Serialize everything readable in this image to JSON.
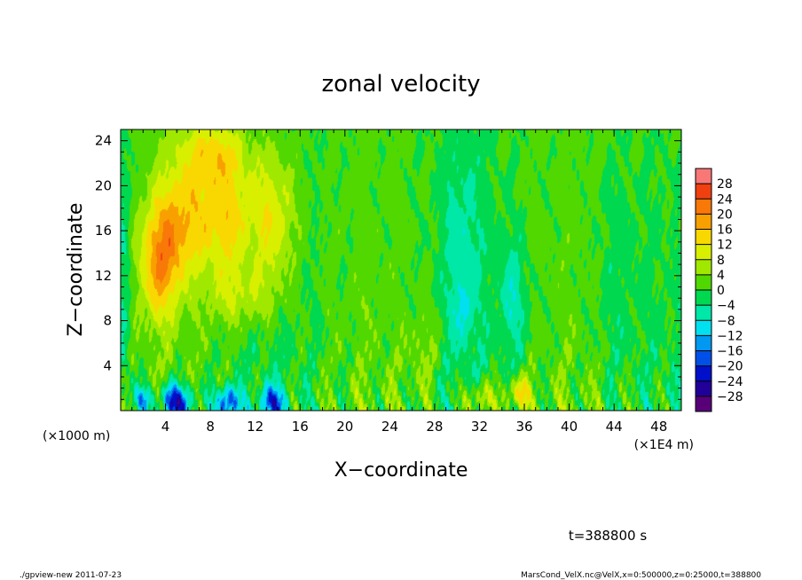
{
  "chart_data": {
    "type": "heatmap",
    "title": "zonal velocity",
    "xlabel": "X−coordinate",
    "ylabel": "Z−coordinate",
    "x_unit_left": "(×1000 m)",
    "x_unit_right": "(×1E4 m)",
    "x_ticks": [
      "4",
      "8",
      "12",
      "16",
      "20",
      "24",
      "28",
      "32",
      "36",
      "40",
      "44",
      "48"
    ],
    "y_ticks": [
      "4",
      "8",
      "12",
      "16",
      "20",
      "24"
    ],
    "xlim": [
      0,
      50
    ],
    "ylim": [
      0,
      25
    ],
    "colorbar_levels": [
      28,
      24,
      20,
      16,
      12,
      8,
      4,
      0,
      -4,
      -8,
      -12,
      -16,
      -20,
      -24,
      -28
    ],
    "colorbar_labels": [
      "28",
      "24",
      "20",
      "16",
      "12",
      "8",
      "4",
      "0",
      "−4",
      "−8",
      "−12",
      "−16",
      "−20",
      "−24",
      "−28"
    ],
    "colorbar_colors": [
      "#f87878",
      "#f04010",
      "#f87808",
      "#f8a000",
      "#f8d800",
      "#d8f000",
      "#a0e800",
      "#50d800",
      "#00d850",
      "#00e8a8",
      "#00e0f0",
      "#0098f0",
      "#0050e8",
      "#0010c8",
      "#200098",
      "#580078"
    ],
    "colorbar_range": [
      -32,
      32
    ],
    "features": [
      {
        "x": 3.5,
        "z": 13.0,
        "sx": 1.8,
        "sz": 5.0,
        "value": 16
      },
      {
        "x": 5.5,
        "z": 17.0,
        "sx": 2.5,
        "sz": 5.0,
        "value": 13
      },
      {
        "x": 9.5,
        "z": 17.0,
        "sx": 2.2,
        "sz": 6.0,
        "value": 13
      },
      {
        "x": 13.5,
        "z": 17.0,
        "sx": 2.0,
        "sz": 6.0,
        "value": 12
      },
      {
        "x": 8.0,
        "z": 23.0,
        "sx": 3.0,
        "sz": 3.0,
        "value": 10
      },
      {
        "x": 11.0,
        "z": 10.0,
        "sx": 3.0,
        "sz": 2.5,
        "value": 6
      },
      {
        "x": 5.0,
        "z": 0.7,
        "sx": 1.4,
        "sz": 1.6,
        "value": -25
      },
      {
        "x": 9.5,
        "z": 0.7,
        "sx": 1.1,
        "sz": 1.4,
        "value": -20
      },
      {
        "x": 13.5,
        "z": 0.7,
        "sx": 1.1,
        "sz": 1.4,
        "value": -18
      },
      {
        "x": 2.0,
        "z": 1.0,
        "sx": 0.8,
        "sz": 1.2,
        "value": -14
      },
      {
        "x": 30.5,
        "z": 14.0,
        "sx": 1.8,
        "sz": 10.0,
        "value": -6
      },
      {
        "x": 35.0,
        "z": 10.0,
        "sx": 1.2,
        "sz": 5.0,
        "value": -7
      },
      {
        "x": 30.5,
        "z": 9.0,
        "sx": 0.6,
        "sz": 2.0,
        "value": -6
      },
      {
        "x": 32.0,
        "z": 1.0,
        "sx": 1.5,
        "sz": 1.5,
        "value": 10
      },
      {
        "x": 35.5,
        "z": 1.5,
        "sx": 1.2,
        "sz": 1.5,
        "value": 12
      },
      {
        "x": 27.0,
        "z": 5.0,
        "sx": 1.5,
        "sz": 4.0,
        "value": 4
      },
      {
        "x": 44.0,
        "z": 10.0,
        "sx": 2.0,
        "sz": 10.0,
        "value": -3
      },
      {
        "x": 0.3,
        "z": 12.0,
        "sx": 0.6,
        "sz": 12.0,
        "value": -6
      }
    ]
  },
  "annotation": "t=388800 s",
  "footer_left": "./gpview-new   2011-07-23",
  "footer_right": "MarsCond_VelX.nc@VelX,x=0:500000,z=0:25000,t=388800"
}
